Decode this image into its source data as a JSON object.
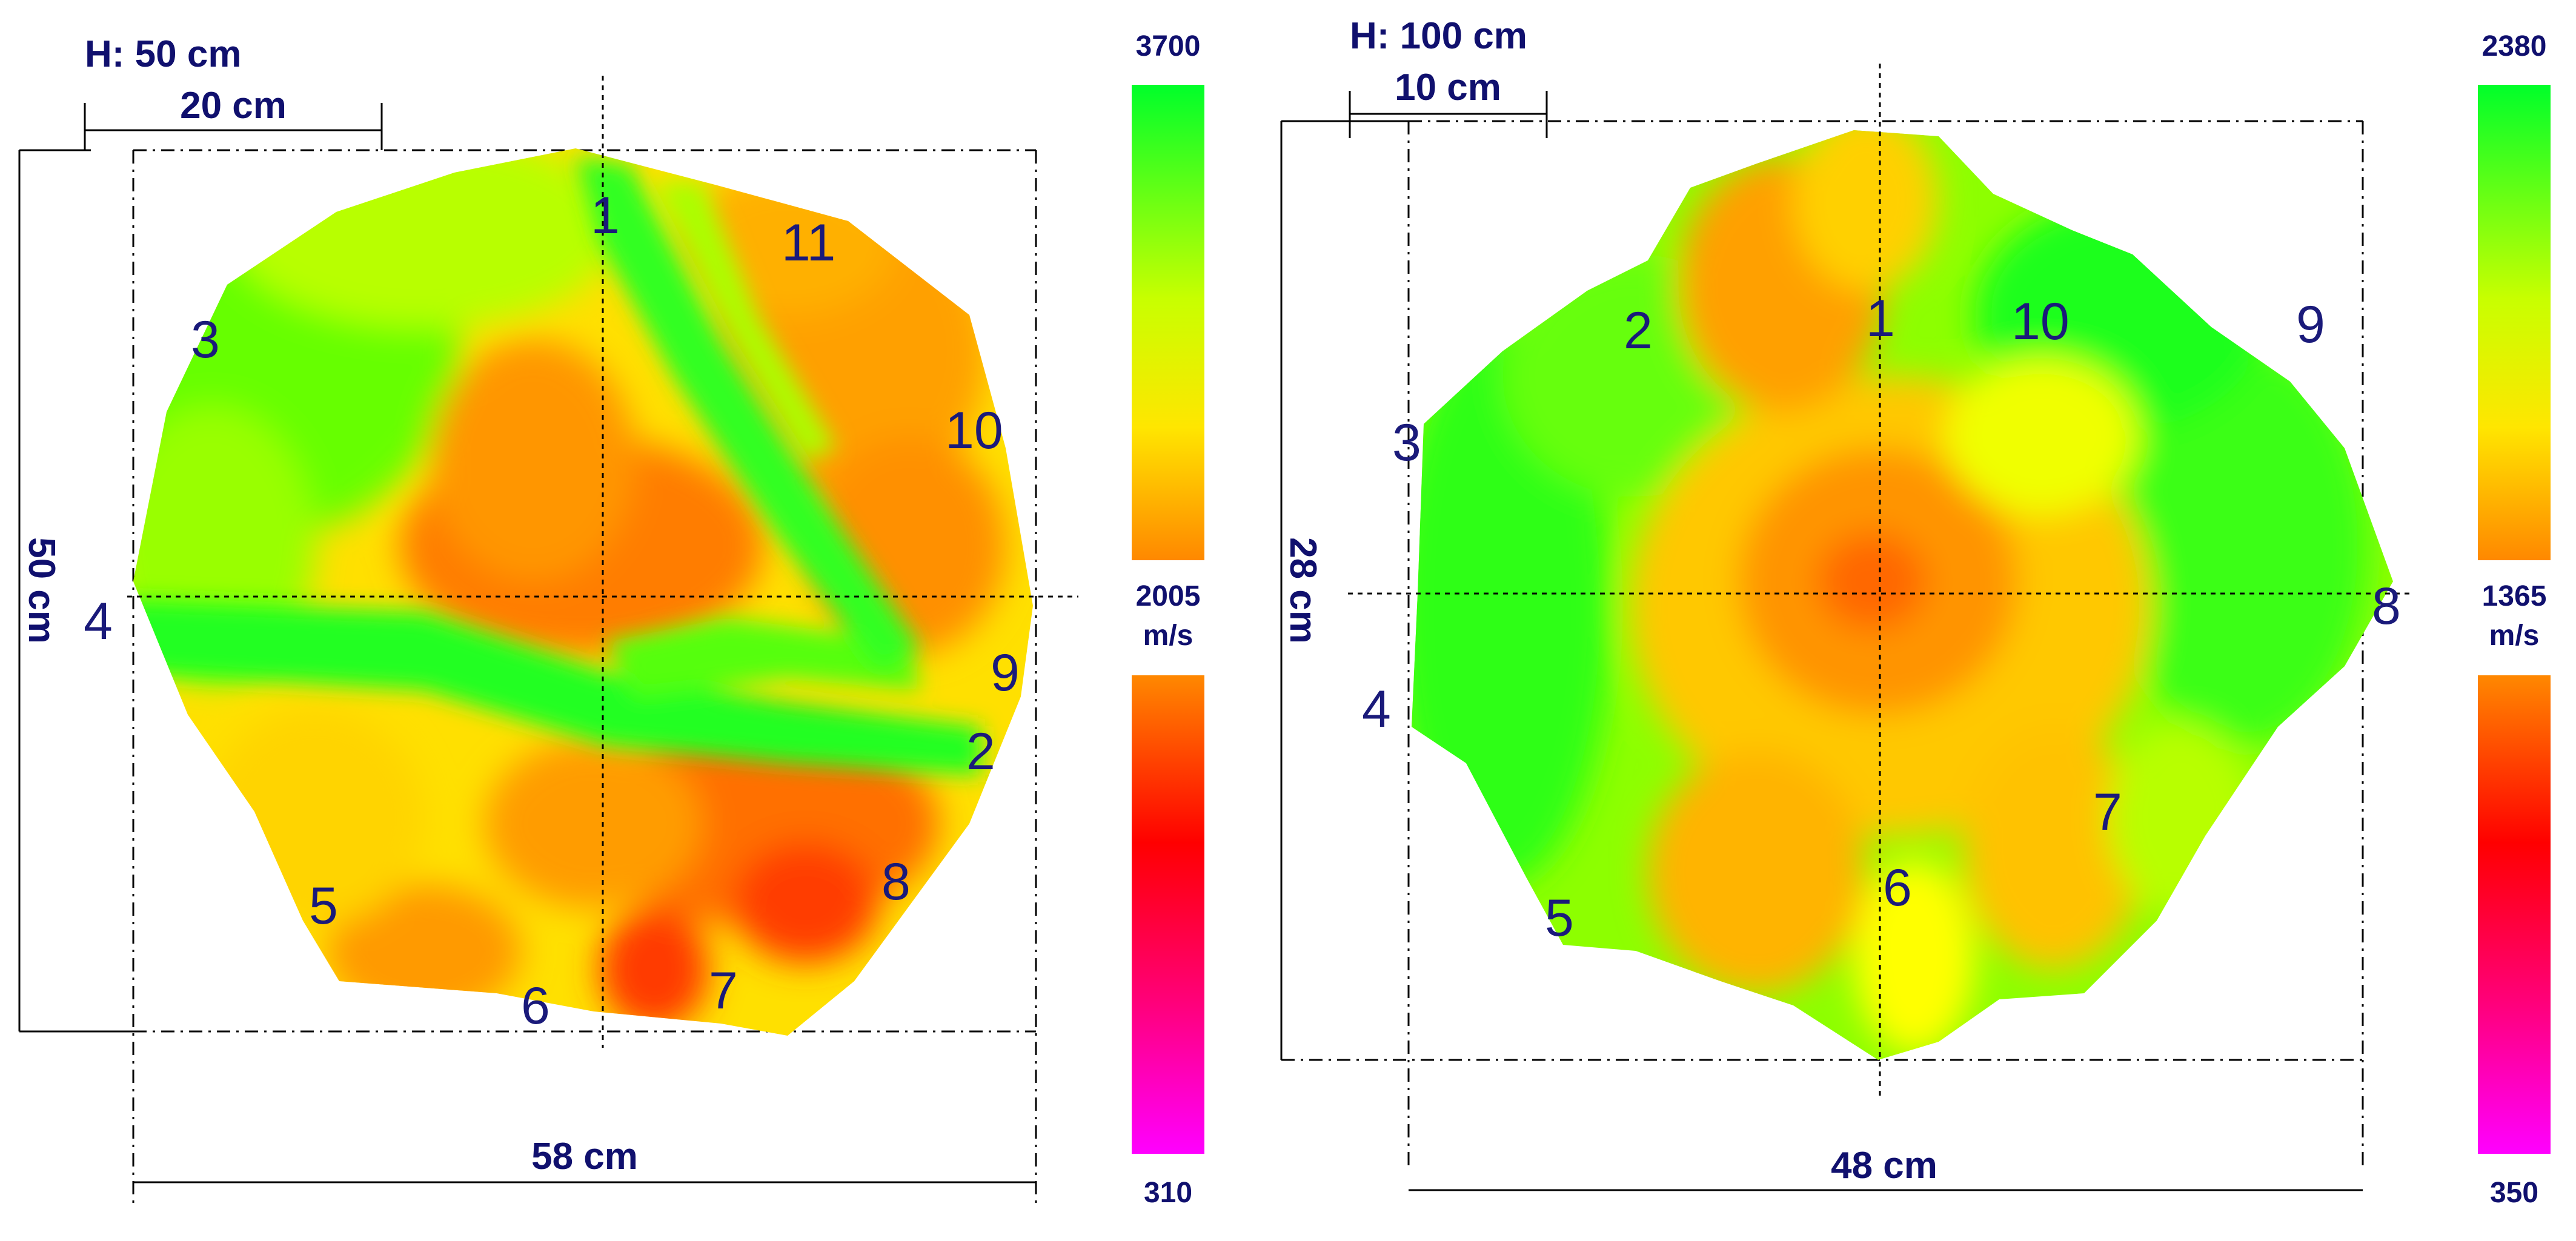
{
  "panels": [
    {
      "height_label": "H: 50 cm",
      "scale_bar_label": "20 cm",
      "width_label": "58 cm",
      "depth_label": "50 cm",
      "sensors": [
        "1",
        "2",
        "3",
        "4",
        "5",
        "6",
        "7",
        "8",
        "9",
        "10",
        "11"
      ],
      "colorbar": {
        "max_label": "3700",
        "mid_value": "2005",
        "mid_unit": "m/s",
        "min_label": "310"
      }
    },
    {
      "height_label": "H: 100 cm",
      "scale_bar_label": "10 cm",
      "width_label": "48 cm",
      "depth_label": "28 cm",
      "sensors": [
        "1",
        "2",
        "3",
        "4",
        "5",
        "6",
        "7",
        "8",
        "9",
        "10"
      ],
      "colorbar": {
        "max_label": "2380",
        "mid_value": "1365",
        "mid_unit": "m/s",
        "min_label": "350"
      }
    }
  ],
  "colors": {
    "high": "#00ff2a",
    "upper_mid": "#ffff00",
    "mid": "#ff8c00",
    "low_mid": "#ff0000",
    "low": "#ff00ff",
    "text": "#10106e"
  }
}
